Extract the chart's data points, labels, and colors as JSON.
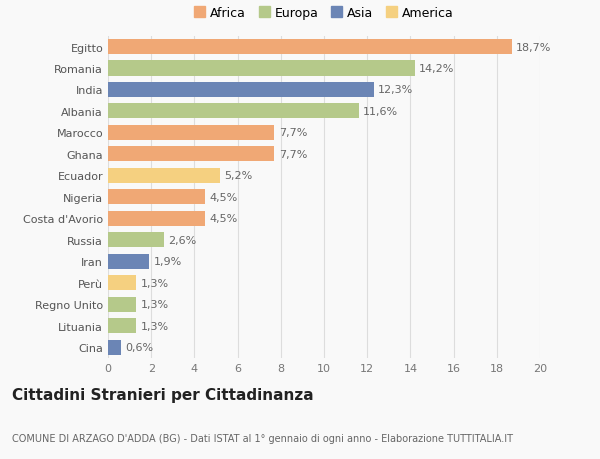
{
  "countries": [
    "Egitto",
    "Romania",
    "India",
    "Albania",
    "Marocco",
    "Ghana",
    "Ecuador",
    "Nigeria",
    "Costa d'Avorio",
    "Russia",
    "Iran",
    "Perù",
    "Regno Unito",
    "Lituania",
    "Cina"
  ],
  "values": [
    18.7,
    14.2,
    12.3,
    11.6,
    7.7,
    7.7,
    5.2,
    4.5,
    4.5,
    2.6,
    1.9,
    1.3,
    1.3,
    1.3,
    0.6
  ],
  "continents": [
    "Africa",
    "Europa",
    "Asia",
    "Europa",
    "Africa",
    "Africa",
    "America",
    "Africa",
    "Africa",
    "Europa",
    "Asia",
    "America",
    "Europa",
    "Europa",
    "Asia"
  ],
  "colors": {
    "Africa": "#F0A875",
    "Europa": "#B5C98A",
    "Asia": "#6B85B5",
    "America": "#F5D080"
  },
  "legend_order": [
    "Africa",
    "Europa",
    "Asia",
    "America"
  ],
  "title": "Cittadini Stranieri per Cittadinanza",
  "subtitle": "COMUNE DI ARZAGO D'ADDA (BG) - Dati ISTAT al 1° gennaio di ogni anno - Elaborazione TUTTITALIA.IT",
  "xlim": [
    0,
    20
  ],
  "xticks": [
    0,
    2,
    4,
    6,
    8,
    10,
    12,
    14,
    16,
    18,
    20
  ],
  "background_color": "#f9f9f9",
  "bar_height": 0.7,
  "label_fontsize": 8,
  "tick_fontsize": 8,
  "title_fontsize": 11,
  "subtitle_fontsize": 7
}
